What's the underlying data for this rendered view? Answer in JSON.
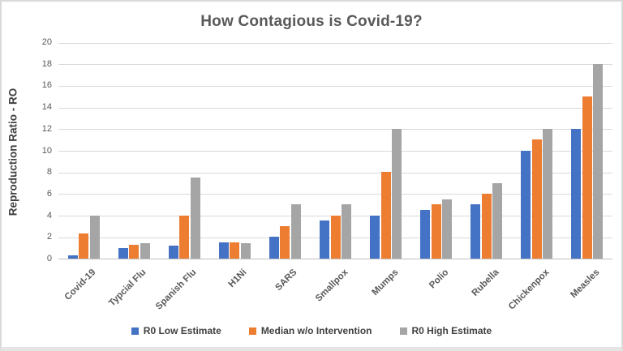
{
  "chart_data": {
    "type": "bar",
    "title": "How Contagious is Covid-19?",
    "xlabel": "",
    "ylabel": "Reproduction Ratio - RO",
    "ylim": [
      0,
      20
    ],
    "ytick_step": 2,
    "grid": true,
    "legend_position": "bottom",
    "categories": [
      "Covid-19",
      "Typcial Flu",
      "Spanish Flu",
      "H1Ni",
      "SARS",
      "Smallpox",
      "Mumps",
      "Polio",
      "Rubella",
      "Chickenpox",
      "Measles"
    ],
    "series": [
      {
        "name": "R0 Low Estimate",
        "color": "#4472C4",
        "values": [
          0.3,
          1.0,
          1.2,
          1.5,
          2,
          3.5,
          4,
          4.5,
          5,
          10,
          12
        ]
      },
      {
        "name": "Median w/o Intervention",
        "color": "#ED7D31",
        "values": [
          2.3,
          1.3,
          4.0,
          1.5,
          3,
          4.0,
          8,
          5.0,
          6,
          11,
          15
        ]
      },
      {
        "name": "R0 High Estimate",
        "color": "#A5A5A5",
        "values": [
          4.0,
          1.4,
          7.5,
          1.4,
          5,
          5.0,
          12,
          5.5,
          7,
          12,
          18
        ]
      }
    ],
    "colors": {
      "title_text": "#595959",
      "axis_text": "#595959",
      "gridline": "#D9D9D9",
      "axis_line": "#BFBFBF",
      "background": "#FFFFFF"
    }
  }
}
